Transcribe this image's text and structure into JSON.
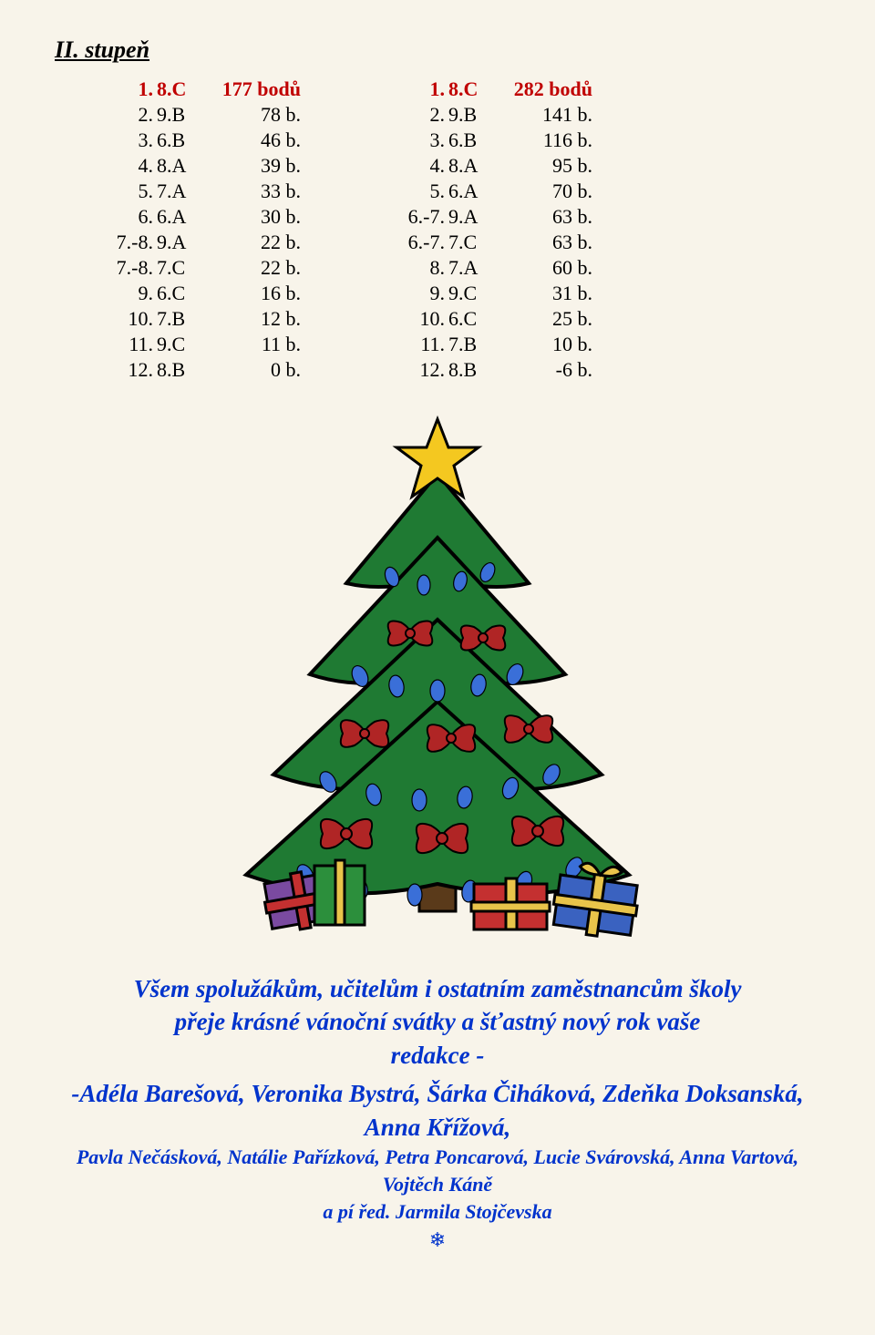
{
  "heading": "II. stupeň",
  "tableLeft": {
    "rows": [
      {
        "rank": "1.",
        "cls": "8.C",
        "pts": "177 bodů",
        "first": true
      },
      {
        "rank": "2.",
        "cls": "9.B",
        "pts": "78 b."
      },
      {
        "rank": "3.",
        "cls": "6.B",
        "pts": "46 b."
      },
      {
        "rank": "4.",
        "cls": "8.A",
        "pts": "39 b."
      },
      {
        "rank": "5.",
        "cls": "7.A",
        "pts": "33 b."
      },
      {
        "rank": "6.",
        "cls": "6.A",
        "pts": "30 b."
      },
      {
        "rank": "7.-8.",
        "cls": "9.A",
        "pts": "22 b."
      },
      {
        "rank": "7.-8.",
        "cls": "7.C",
        "pts": "22 b."
      },
      {
        "rank": "9.",
        "cls": "6.C",
        "pts": "16 b."
      },
      {
        "rank": "10.",
        "cls": "7.B",
        "pts": "12 b."
      },
      {
        "rank": "11.",
        "cls": "9.C",
        "pts": "11 b."
      },
      {
        "rank": "12.",
        "cls": "8.B",
        "pts": "0 b."
      }
    ]
  },
  "tableRight": {
    "rows": [
      {
        "rank": "1.",
        "cls": "8.C",
        "pts": "282 bodů",
        "first": true
      },
      {
        "rank": "2.",
        "cls": "9.B",
        "pts": "141 b."
      },
      {
        "rank": "3.",
        "cls": "6.B",
        "pts": "116 b."
      },
      {
        "rank": "4.",
        "cls": "8.A",
        "pts": "95 b."
      },
      {
        "rank": "5.",
        "cls": "6.A",
        "pts": "70 b."
      },
      {
        "rank": "6.-7.",
        "cls": "9.A",
        "pts": "63 b."
      },
      {
        "rank": "6.-7.",
        "cls": "7.C",
        "pts": "63 b."
      },
      {
        "rank": "8.",
        "cls": "7.A",
        "pts": "60 b."
      },
      {
        "rank": "9.",
        "cls": "9.C",
        "pts": "31 b."
      },
      {
        "rank": "10.",
        "cls": "6.C",
        "pts": "25 b."
      },
      {
        "rank": "11.",
        "cls": "7.B",
        "pts": "10 b."
      },
      {
        "rank": "12.",
        "cls": "8.B",
        "pts": "-6 b."
      }
    ]
  },
  "greeting": {
    "line1": "Všem spolužákům, učitelům i ostatním zaměstnancům školy",
    "line2": "přeje  krásné  vánoční svátky a šťastný   nový rok vaše",
    "line3": "redakce   -"
  },
  "names": {
    "line1": "-Adéla Barešová, Veronika Bystrá, Šárka Čiháková, Zdeňka Doksanská, Anna Křížová,",
    "line2": "Pavla Nečásková, Natálie Pařízková, Petra Poncarová, Lucie Svárovská, Anna Vartová,",
    "line3": "Vojtěch Káně",
    "line4": "a pí řed. Jarmila Stojčevska"
  },
  "tree": {
    "colors": {
      "treeFill": "#1f7a33",
      "treeStroke": "#0a3d14",
      "trunk": "#5a3a1a",
      "star": "#f4c820",
      "starStroke": "#8a6a00",
      "bowRed": "#b02525",
      "lightBlue": "#3a6fd8",
      "giftGreen": "#2c8f3c",
      "giftRed": "#c43030",
      "giftBlue": "#3a62c0",
      "giftPurple": "#7a4aa0",
      "ribbonYellow": "#e8c44a",
      "outline": "#000000"
    }
  }
}
